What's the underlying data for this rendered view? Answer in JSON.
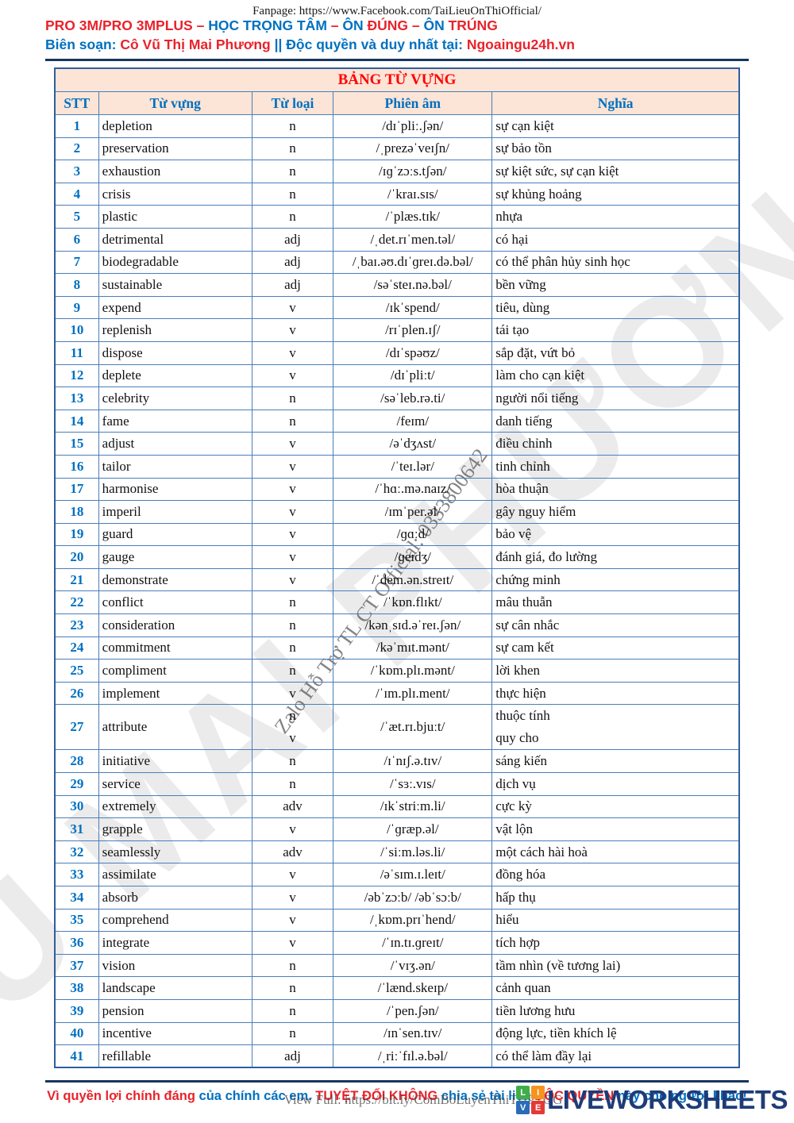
{
  "header": {
    "fanpage": "Fanpage: https://www.Facebook.com/TaiLieuOnThiOfficial/",
    "line2_segments": [
      {
        "t": "PRO 3M/PRO 3MPLUS – ",
        "c": "red"
      },
      {
        "t": "HỌC TRỌNG TÂM",
        "c": "blue"
      },
      {
        "t": " – ",
        "c": "red"
      },
      {
        "t": "ÔN",
        "c": "blue"
      },
      {
        "t": " ĐÚNG",
        "c": "red"
      },
      {
        "t": " – ",
        "c": "red"
      },
      {
        "t": "ÔN",
        "c": "blue"
      },
      {
        "t": " TRÚNG",
        "c": "red"
      }
    ],
    "line3_segments": [
      {
        "t": "Biên soạn: ",
        "c": "blue"
      },
      {
        "t": "Cô Vũ Thị Mai Phương",
        "c": "red"
      },
      {
        "t": " || Độc quyền và duy nhất tại: ",
        "c": "blue"
      },
      {
        "t": "Ngoaingu24h.vn",
        "c": "red"
      }
    ]
  },
  "table": {
    "title": "BẢNG TỪ VỰNG",
    "columns": [
      "STT",
      "Từ vựng",
      "Từ loại",
      "Phiên âm",
      "Nghĩa"
    ],
    "rows": [
      {
        "stt": "1",
        "word": "depletion",
        "pos": "n",
        "ipa": "/dɪˈpliː.ʃən/",
        "meaning": "sự cạn kiệt"
      },
      {
        "stt": "2",
        "word": "preservation",
        "pos": "n",
        "ipa": "/ˌprezəˈveɪʃn/",
        "meaning": "sự bảo tồn"
      },
      {
        "stt": "3",
        "word": "exhaustion",
        "pos": "n",
        "ipa": "/ɪɡˈzɔːs.tʃən/",
        "meaning": "sự kiệt sức, sự cạn kiệt"
      },
      {
        "stt": "4",
        "word": "crisis",
        "pos": "n",
        "ipa": "/ˈkraɪ.sɪs/",
        "meaning": "sự khủng hoảng"
      },
      {
        "stt": "5",
        "word": "plastic",
        "pos": "n",
        "ipa": "/ˈplæs.tɪk/",
        "meaning": "nhựa"
      },
      {
        "stt": "6",
        "word": "detrimental",
        "pos": "adj",
        "ipa": "/ˌdet.rɪˈmen.təl/",
        "meaning": "có hại"
      },
      {
        "stt": "7",
        "word": "biodegradable",
        "pos": "adj",
        "ipa": "/ˌbaɪ.əʊ.dɪˈɡreɪ.də.bəl/",
        "meaning": "có thể phân hủy sinh học"
      },
      {
        "stt": "8",
        "word": "sustainable",
        "pos": "adj",
        "ipa": "/səˈsteɪ.nə.bəl/",
        "meaning": "bền vững"
      },
      {
        "stt": "9",
        "word": "expend",
        "pos": "v",
        "ipa": "/ɪkˈspend/",
        "meaning": "tiêu, dùng"
      },
      {
        "stt": "10",
        "word": "replenish",
        "pos": "v",
        "ipa": "/rɪˈplen.ɪʃ/",
        "meaning": "tái tạo"
      },
      {
        "stt": "11",
        "word": "dispose",
        "pos": "v",
        "ipa": "/dɪˈspəʊz/",
        "meaning": "sắp đặt, vứt bỏ"
      },
      {
        "stt": "12",
        "word": "deplete",
        "pos": "v",
        "ipa": "/dɪˈpliːt/",
        "meaning": "làm cho cạn kiệt"
      },
      {
        "stt": "13",
        "word": "celebrity",
        "pos": "n",
        "ipa": "/səˈleb.rə.ti/",
        "meaning": "người nổi tiếng"
      },
      {
        "stt": "14",
        "word": "fame",
        "pos": "n",
        "ipa": "/feɪm/",
        "meaning": "danh tiếng"
      },
      {
        "stt": "15",
        "word": "adjust",
        "pos": "v",
        "ipa": "/əˈdʒʌst/",
        "meaning": "điều chỉnh"
      },
      {
        "stt": "16",
        "word": "tailor",
        "pos": "v",
        "ipa": "/ˈteɪ.lər/",
        "meaning": "tinh chỉnh"
      },
      {
        "stt": "17",
        "word": "harmonise",
        "pos": "v",
        "ipa": "/ˈhɑː.mə.naɪz/",
        "meaning": "hòa thuận"
      },
      {
        "stt": "18",
        "word": "imperil",
        "pos": "v",
        "ipa": "/ɪmˈper.əl/",
        "meaning": "gây nguy hiểm"
      },
      {
        "stt": "19",
        "word": "guard",
        "pos": "v",
        "ipa": "/ɡɑːd/",
        "meaning": "bảo vệ"
      },
      {
        "stt": "20",
        "word": "gauge",
        "pos": "v",
        "ipa": "/ɡeɪdʒ/",
        "meaning": "đánh giá, đo lường"
      },
      {
        "stt": "21",
        "word": "demonstrate",
        "pos": "v",
        "ipa": "/ˈdem.ən.streɪt/",
        "meaning": "chứng minh"
      },
      {
        "stt": "22",
        "word": "conflict",
        "pos": "n",
        "ipa": "/ˈkɒn.flɪkt/",
        "meaning": "mâu thuẫn"
      },
      {
        "stt": "23",
        "word": "consideration",
        "pos": "n",
        "ipa": "/kənˌsɪd.əˈreɪ.ʃən/",
        "meaning": "sự cân nhắc"
      },
      {
        "stt": "24",
        "word": "commitment",
        "pos": "n",
        "ipa": "/kəˈmɪt.mənt/",
        "meaning": "sự cam kết"
      },
      {
        "stt": "25",
        "word": "compliment",
        "pos": "n",
        "ipa": "/ˈkɒm.plɪ.mənt/",
        "meaning": "lời khen"
      },
      {
        "stt": "26",
        "word": "implement",
        "pos": "v",
        "ipa": "/ˈɪm.plɪ.ment/",
        "meaning": "thực hiện"
      },
      {
        "stt": "27",
        "word": "attribute",
        "pos": [
          "n",
          "v"
        ],
        "ipa": "/ˈæt.rɪ.bjuːt/",
        "meaning": [
          "thuộc tính",
          "quy cho"
        ]
      },
      {
        "stt": "28",
        "word": "initiative",
        "pos": "n",
        "ipa": "/ɪˈnɪʃ.ə.tɪv/",
        "meaning": "sáng kiến"
      },
      {
        "stt": "29",
        "word": "service",
        "pos": "n",
        "ipa": "/ˈsɜː.vɪs/",
        "meaning": "dịch vụ"
      },
      {
        "stt": "30",
        "word": "extremely",
        "pos": "adv",
        "ipa": "/ɪkˈstriːm.li/",
        "meaning": "cực kỳ"
      },
      {
        "stt": "31",
        "word": "grapple",
        "pos": "v",
        "ipa": "/ˈɡræp.əl/",
        "meaning": "vật lộn"
      },
      {
        "stt": "32",
        "word": "seamlessly",
        "pos": "adv",
        "ipa": "/ˈsiːm.ləs.li/",
        "meaning": "một cách hài hoà"
      },
      {
        "stt": "33",
        "word": "assimilate",
        "pos": "v",
        "ipa": "/əˈsɪm.ɪ.leɪt/",
        "meaning": "đồng hóa"
      },
      {
        "stt": "34",
        "word": "absorb",
        "pos": "v",
        "ipa": "/əbˈzɔːb/ /əbˈsɔːb/",
        "meaning": "hấp thụ"
      },
      {
        "stt": "35",
        "word": "comprehend",
        "pos": "v",
        "ipa": "/ˌkɒm.prɪˈhend/",
        "meaning": "hiểu"
      },
      {
        "stt": "36",
        "word": "integrate",
        "pos": "v",
        "ipa": "/ˈɪn.tɪ.ɡreɪt/",
        "meaning": "tích hợp"
      },
      {
        "stt": "37",
        "word": "vision",
        "pos": "n",
        "ipa": "/ˈvɪʒ.ən/",
        "meaning": "tầm nhìn (về tương lai)"
      },
      {
        "stt": "38",
        "word": "landscape",
        "pos": "n",
        "ipa": "/ˈlænd.skeɪp/",
        "meaning": "cảnh quan"
      },
      {
        "stt": "39",
        "word": "pension",
        "pos": "n",
        "ipa": "/ˈpen.ʃən/",
        "meaning": "tiền lương hưu"
      },
      {
        "stt": "40",
        "word": "incentive",
        "pos": "n",
        "ipa": "/ɪnˈsen.tɪv/",
        "meaning": "động lực, tiền khích lệ"
      },
      {
        "stt": "41",
        "word": "refillable",
        "pos": "adj",
        "ipa": "/ˌriːˈfɪl.ə.bəl/",
        "meaning": "có thể làm đầy lại"
      }
    ]
  },
  "footer": {
    "segments": [
      {
        "t": "Vì quyền lợi chính đáng",
        "c": "red"
      },
      {
        "t": " của chính các em. ",
        "c": "blue"
      },
      {
        "t": "TUYỆT ĐỐI KHÔNG",
        "c": "red"
      },
      {
        "t": " chia sẻ tài liệu ",
        "c": "blue"
      },
      {
        "t": "ĐỘC QUYỀN",
        "c": "red"
      },
      {
        "t": " này cho người khác!",
        "c": "blue"
      }
    ],
    "view_full_watermark": "View Full: https://bit.ly/ComBoLuyenThiTHPTQG"
  },
  "watermarks": {
    "big_diagonal": "VŨ MAI PHƯƠNG",
    "zalo_diagonal": "Zalo Hỗ Trợ TL CT Official: 0333800642"
  },
  "logo": {
    "tiles": [
      {
        "letter": "L",
        "color": "#3fae49"
      },
      {
        "letter": "I",
        "color": "#f7941e"
      },
      {
        "letter": "V",
        "color": "#2b6cb8"
      },
      {
        "letter": "E",
        "color": "#e53935"
      }
    ],
    "text": "LIVEWORKSHEETS"
  },
  "colors": {
    "red": "#e8232b",
    "blue": "#0070c0",
    "title_red": "#ff0000",
    "table_border": "#4a7ebb",
    "header_bg": "#fce4d6",
    "divider_navy": "#17365d",
    "logo_navy": "#1d3c78"
  }
}
